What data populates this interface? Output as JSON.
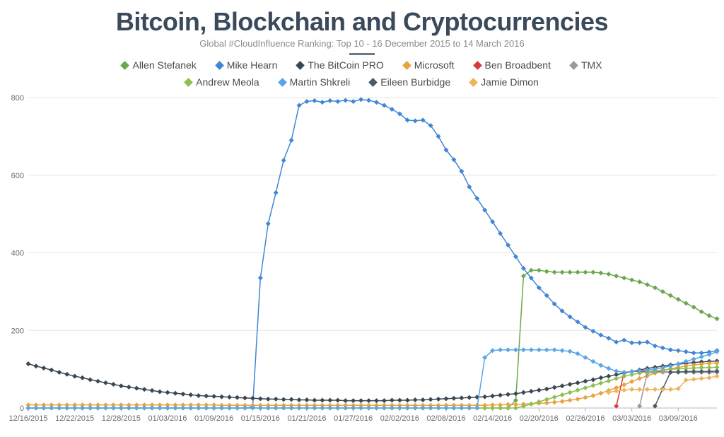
{
  "title": "Bitcoin, Blockchain and Cryptocurrencies",
  "subtitle": "Global #CloudInfluence Ranking: Top 10 - 16 December 2015 to 14 March 2016",
  "chart": {
    "type": "line",
    "background_color": "#ffffff",
    "grid_color": "#e6e6e6",
    "axis_color": "#b8b8b8",
    "title_color": "#3a4a5a",
    "subtitle_color": "#8a8a8a",
    "legend_text_color": "#4a4a4a",
    "tick_color": "#6a6a6a",
    "title_fontsize": 36,
    "subtitle_fontsize": 13,
    "legend_fontsize": 14,
    "tick_fontsize": 11,
    "line_width": 1.5,
    "marker_style": "diamond",
    "marker_size": 3.5,
    "ylim": [
      0,
      800
    ],
    "ytick_step": 200,
    "x_domain": [
      0,
      89
    ],
    "x_labels": [
      {
        "i": 0,
        "label": "12/16/2015"
      },
      {
        "i": 6,
        "label": "12/22/2015"
      },
      {
        "i": 12,
        "label": "12/28/2015"
      },
      {
        "i": 18,
        "label": "01/03/2016"
      },
      {
        "i": 24,
        "label": "01/09/2016"
      },
      {
        "i": 30,
        "label": "01/15/2016"
      },
      {
        "i": 36,
        "label": "01/21/2016"
      },
      {
        "i": 42,
        "label": "01/27/2016"
      },
      {
        "i": 48,
        "label": "02/02/2016"
      },
      {
        "i": 54,
        "label": "02/08/2016"
      },
      {
        "i": 60,
        "label": "02/14/2016"
      },
      {
        "i": 66,
        "label": "02/20/2016"
      },
      {
        "i": 72,
        "label": "02/26/2016"
      },
      {
        "i": 78,
        "label": "03/03/2016"
      },
      {
        "i": 84,
        "label": "03/09/2016"
      }
    ],
    "series": [
      {
        "name": "Allen Stefanek",
        "color": "#6aa84f",
        "legend_row": 0,
        "values": [
          0,
          0,
          0,
          0,
          0,
          0,
          0,
          0,
          0,
          0,
          0,
          0,
          0,
          0,
          0,
          0,
          0,
          0,
          0,
          0,
          0,
          0,
          0,
          0,
          0,
          0,
          0,
          0,
          0,
          0,
          0,
          0,
          0,
          0,
          0,
          0,
          0,
          0,
          0,
          0,
          0,
          0,
          0,
          0,
          0,
          0,
          0,
          0,
          0,
          0,
          0,
          0,
          0,
          0,
          0,
          0,
          0,
          0,
          0,
          0,
          0,
          0,
          0,
          20,
          340,
          355,
          355,
          352,
          350,
          350,
          350,
          350,
          350,
          350,
          348,
          345,
          340,
          335,
          330,
          325,
          318,
          310,
          300,
          290,
          280,
          270,
          260,
          248,
          238,
          230
        ]
      },
      {
        "name": "Mike Hearn",
        "color": "#3f86d6",
        "legend_row": 0,
        "values": [
          0,
          0,
          0,
          0,
          0,
          0,
          0,
          0,
          0,
          0,
          0,
          0,
          0,
          0,
          0,
          0,
          0,
          0,
          0,
          0,
          0,
          0,
          0,
          0,
          0,
          0,
          0,
          0,
          0,
          3,
          335,
          475,
          555,
          638,
          690,
          780,
          790,
          792,
          788,
          792,
          790,
          793,
          790,
          795,
          793,
          788,
          780,
          770,
          758,
          742,
          740,
          742,
          728,
          700,
          665,
          640,
          610,
          570,
          540,
          510,
          480,
          450,
          420,
          390,
          360,
          335,
          310,
          290,
          268,
          250,
          235,
          222,
          208,
          198,
          188,
          180,
          170,
          175,
          168,
          168,
          170,
          160,
          155,
          150,
          148,
          145,
          142,
          142,
          144,
          148
        ]
      },
      {
        "name": "The BitCoin PRO",
        "color": "#3a4752",
        "legend_row": 0,
        "values": [
          114,
          108,
          103,
          98,
          92,
          87,
          82,
          78,
          73,
          69,
          65,
          61,
          57,
          54,
          51,
          48,
          45,
          42,
          40,
          38,
          36,
          34,
          32,
          31,
          30,
          29,
          28,
          27,
          26,
          25,
          24,
          23,
          23,
          22,
          22,
          21,
          21,
          20,
          20,
          20,
          20,
          19,
          19,
          19,
          19,
          19,
          19,
          20,
          20,
          20,
          21,
          21,
          22,
          23,
          24,
          25,
          26,
          27,
          28,
          29,
          31,
          33,
          35,
          37,
          40,
          43,
          46,
          49,
          53,
          57,
          61,
          65,
          69,
          73,
          78,
          82,
          86,
          90,
          94,
          98,
          102,
          105,
          108,
          111,
          113,
          115,
          117,
          119,
          120,
          121
        ]
      },
      {
        "name": "Microsoft",
        "color": "#e8a33d",
        "legend_row": 0,
        "values": [
          8,
          8,
          8,
          8,
          8,
          8,
          8,
          8,
          8,
          8,
          8,
          8,
          8,
          8,
          8,
          8,
          8,
          8,
          8,
          8,
          8,
          8,
          8,
          8,
          8,
          7,
          7,
          7,
          7,
          7,
          7,
          7,
          7,
          7,
          7,
          7,
          7,
          7,
          7,
          7,
          7,
          7,
          7,
          7,
          7,
          7,
          7,
          7,
          7,
          7,
          7,
          7,
          7,
          7,
          7,
          7,
          7,
          7,
          7,
          7,
          8,
          8,
          9,
          9,
          10,
          11,
          12,
          13,
          15,
          17,
          20,
          23,
          27,
          32,
          38,
          45,
          52,
          60,
          68,
          76,
          83,
          90,
          96,
          101,
          105,
          108,
          111,
          113,
          115,
          116
        ]
      },
      {
        "name": "Ben Broadbent",
        "color": "#d93b3b",
        "legend_row": 0,
        "values": [
          null,
          null,
          null,
          null,
          null,
          null,
          null,
          null,
          null,
          null,
          null,
          null,
          null,
          null,
          null,
          null,
          null,
          null,
          null,
          null,
          null,
          null,
          null,
          null,
          null,
          null,
          null,
          null,
          null,
          null,
          null,
          null,
          null,
          null,
          null,
          null,
          null,
          null,
          null,
          null,
          null,
          null,
          null,
          null,
          null,
          null,
          null,
          null,
          null,
          null,
          null,
          null,
          null,
          null,
          null,
          null,
          null,
          null,
          null,
          null,
          null,
          null,
          null,
          null,
          null,
          null,
          null,
          null,
          null,
          null,
          null,
          null,
          null,
          null,
          null,
          null,
          5,
          92,
          94,
          94,
          94,
          94,
          93,
          93,
          93,
          92,
          92,
          92,
          92,
          92
        ]
      },
      {
        "name": "TMX",
        "color": "#9a9a9a",
        "legend_row": 0,
        "values": [
          null,
          null,
          null,
          null,
          null,
          null,
          null,
          null,
          null,
          null,
          null,
          null,
          null,
          null,
          null,
          null,
          null,
          null,
          null,
          null,
          null,
          null,
          null,
          null,
          null,
          null,
          null,
          null,
          null,
          null,
          null,
          null,
          null,
          null,
          null,
          null,
          null,
          null,
          null,
          null,
          null,
          null,
          null,
          null,
          null,
          null,
          null,
          null,
          null,
          null,
          null,
          null,
          null,
          null,
          null,
          null,
          null,
          null,
          null,
          null,
          null,
          null,
          null,
          null,
          null,
          null,
          null,
          null,
          null,
          null,
          null,
          null,
          null,
          null,
          null,
          null,
          null,
          null,
          null,
          5,
          90,
          92,
          92,
          92,
          92,
          92,
          92,
          92,
          92,
          92
        ]
      },
      {
        "name": "Andrew Meola",
        "color": "#8fbf4f",
        "legend_row": 1,
        "values": [
          0,
          0,
          0,
          0,
          0,
          0,
          0,
          0,
          0,
          0,
          0,
          0,
          0,
          0,
          0,
          0,
          0,
          0,
          0,
          0,
          0,
          0,
          0,
          0,
          0,
          0,
          0,
          0,
          0,
          0,
          0,
          0,
          0,
          0,
          0,
          0,
          0,
          0,
          0,
          0,
          0,
          0,
          0,
          0,
          0,
          0,
          0,
          0,
          0,
          0,
          0,
          0,
          0,
          0,
          0,
          0,
          0,
          0,
          0,
          0,
          0,
          0,
          0,
          0,
          5,
          10,
          16,
          22,
          28,
          34,
          40,
          46,
          52,
          58,
          64,
          70,
          76,
          82,
          86,
          90,
          93,
          96,
          98,
          100,
          101,
          102,
          103,
          104,
          104,
          105
        ]
      },
      {
        "name": "Martin Shkreli",
        "color": "#5aa6e6",
        "legend_row": 1,
        "values": [
          0,
          0,
          0,
          0,
          0,
          0,
          0,
          0,
          0,
          0,
          0,
          0,
          0,
          0,
          0,
          0,
          0,
          0,
          0,
          0,
          0,
          0,
          0,
          0,
          0,
          0,
          0,
          0,
          0,
          0,
          0,
          0,
          0,
          0,
          0,
          0,
          0,
          0,
          0,
          0,
          0,
          0,
          0,
          0,
          0,
          0,
          0,
          0,
          0,
          0,
          0,
          0,
          0,
          0,
          0,
          0,
          0,
          0,
          0,
          130,
          148,
          150,
          150,
          150,
          150,
          150,
          150,
          150,
          150,
          148,
          146,
          140,
          130,
          120,
          110,
          102,
          95,
          92,
          94,
          96,
          98,
          100,
          104,
          108,
          114,
          120,
          126,
          132,
          138,
          145
        ]
      },
      {
        "name": "Eileen Burbidge",
        "color": "#4a5a68",
        "legend_row": 1,
        "values": [
          null,
          null,
          null,
          null,
          null,
          null,
          null,
          null,
          null,
          null,
          null,
          null,
          null,
          null,
          null,
          null,
          null,
          null,
          null,
          null,
          null,
          null,
          null,
          null,
          null,
          null,
          null,
          null,
          null,
          null,
          null,
          null,
          null,
          null,
          null,
          null,
          null,
          null,
          null,
          null,
          null,
          null,
          null,
          null,
          null,
          null,
          null,
          null,
          null,
          null,
          null,
          null,
          null,
          null,
          null,
          null,
          null,
          null,
          null,
          null,
          null,
          null,
          null,
          null,
          null,
          null,
          null,
          null,
          null,
          null,
          null,
          null,
          null,
          null,
          null,
          null,
          null,
          null,
          null,
          null,
          null,
          5,
          50,
          92,
          93,
          94,
          94,
          94,
          94,
          95
        ]
      },
      {
        "name": "Jamie Dimon",
        "color": "#f0b35a",
        "legend_row": 1,
        "values": [
          null,
          null,
          null,
          null,
          null,
          null,
          null,
          null,
          null,
          null,
          null,
          null,
          null,
          null,
          null,
          null,
          null,
          null,
          null,
          null,
          null,
          null,
          null,
          null,
          null,
          null,
          null,
          null,
          null,
          null,
          null,
          null,
          null,
          null,
          null,
          null,
          null,
          null,
          null,
          null,
          null,
          null,
          null,
          null,
          null,
          null,
          null,
          null,
          null,
          null,
          null,
          null,
          null,
          null,
          null,
          null,
          null,
          null,
          null,
          null,
          null,
          null,
          null,
          null,
          null,
          null,
          null,
          null,
          null,
          null,
          null,
          null,
          null,
          null,
          null,
          40,
          44,
          46,
          48,
          48,
          48,
          48,
          48,
          48,
          50,
          72,
          74,
          76,
          78,
          82
        ]
      }
    ]
  }
}
